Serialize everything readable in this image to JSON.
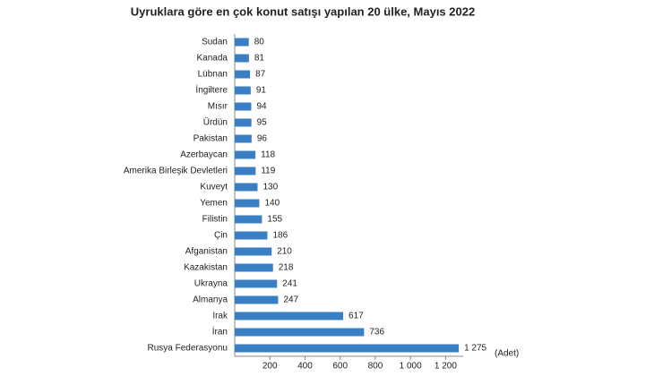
{
  "chart_data": {
    "type": "barh",
    "title": "Uyruklara göre en çok konut satışı yapılan 20 ülke, Mayıs 2022",
    "categories": [
      "Sudan",
      "Kanada",
      "Lübnan",
      "İngiltere",
      "Mısır",
      "Ürdün",
      "Pakistan",
      "Azerbaycan",
      "Amerika Birleşik Devletleri",
      "Kuveyt",
      "Yemen",
      "Filistin",
      "Çin",
      "Afganistan",
      "Kazakistan",
      "Ukrayna",
      "Almanya",
      "Irak",
      "İran",
      "Rusya Federasyonu"
    ],
    "values": [
      80,
      81,
      87,
      91,
      94,
      95,
      96,
      118,
      119,
      130,
      140,
      155,
      186,
      210,
      218,
      241,
      247,
      617,
      736,
      1275
    ],
    "value_labels": [
      "80",
      "81",
      "87",
      "91",
      "94",
      "95",
      "96",
      "118",
      "119",
      "130",
      "140",
      "155",
      "186",
      "210",
      "218",
      "241",
      "247",
      "617",
      "736",
      "1 275"
    ],
    "color": "#3a7fc4",
    "xlim": [
      0,
      1300
    ],
    "xticks": [
      200,
      400,
      600,
      800,
      {
        "value": 1000,
        "label": "1 000"
      },
      {
        "value": 1200,
        "label": "1 200"
      }
    ],
    "xlabel": "(Adet)",
    "grid": false
  }
}
